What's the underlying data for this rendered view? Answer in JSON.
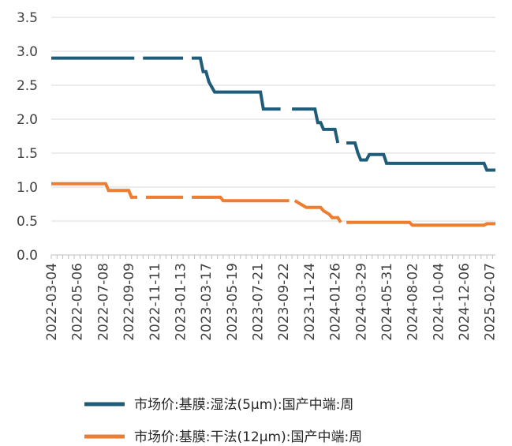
{
  "chart_data": {
    "type": "line",
    "title": "",
    "xlabel": "",
    "ylabel": "",
    "ylim": [
      0,
      3.5
    ],
    "yticks": [
      "0.0",
      "0.5",
      "1.0",
      "1.5",
      "2.0",
      "2.5",
      "3.0",
      "3.5"
    ],
    "xticks": [
      "2022-03-04",
      "2022-05-06",
      "2022-07-08",
      "2022-09-09",
      "2022-11-11",
      "2023-01-13",
      "2023-03-17",
      "2023-05-19",
      "2023-07-21",
      "2023-09-22",
      "2023-11-24",
      "2024-01-26",
      "2024-03-29",
      "2024-05-31",
      "2024-08-02",
      "2024-10-04",
      "2024-12-06",
      "2025-02-07"
    ],
    "grid": true,
    "legend_position": "bottom",
    "series": [
      {
        "name": "市场价:基膜:湿法(5μm):国产中端:周",
        "color": "#1f5c7a",
        "points": [
          [
            "2022-03-04",
            2.9
          ],
          [
            "2022-09-23",
            2.9
          ],
          [
            "2022-10-07",
            null
          ],
          [
            "2022-10-14",
            2.9
          ],
          [
            "2023-01-20",
            2.9
          ],
          [
            "2023-02-03",
            null
          ],
          [
            "2023-02-10",
            2.9
          ],
          [
            "2023-03-03",
            2.9
          ],
          [
            "2023-03-10",
            2.7
          ],
          [
            "2023-03-17",
            2.7
          ],
          [
            "2023-03-24",
            2.55
          ],
          [
            "2023-04-07",
            2.4
          ],
          [
            "2023-07-28",
            2.4
          ],
          [
            "2023-08-04",
            2.15
          ],
          [
            "2023-09-15",
            2.15
          ],
          [
            "2023-09-29",
            null
          ],
          [
            "2023-10-13",
            2.15
          ],
          [
            "2023-12-08",
            2.15
          ],
          [
            "2023-12-15",
            1.95
          ],
          [
            "2023-12-22",
            1.95
          ],
          [
            "2023-12-29",
            1.85
          ],
          [
            "2024-01-26",
            1.85
          ],
          [
            "2024-02-02",
            1.65
          ],
          [
            "2024-02-09",
            null
          ],
          [
            "2024-02-23",
            1.65
          ],
          [
            "2024-03-15",
            1.65
          ],
          [
            "2024-03-22",
            1.5
          ],
          [
            "2024-03-29",
            1.4
          ],
          [
            "2024-04-12",
            1.4
          ],
          [
            "2024-04-19",
            1.48
          ],
          [
            "2024-05-24",
            1.48
          ],
          [
            "2024-05-31",
            1.35
          ],
          [
            "2025-01-24",
            1.35
          ],
          [
            "2025-01-31",
            1.25
          ],
          [
            "2025-02-21",
            1.25
          ]
        ]
      },
      {
        "name": "市场价:基膜:干法(12μm):国产中端:周",
        "color": "#ed7d31",
        "points": [
          [
            "2022-03-04",
            1.05
          ],
          [
            "2022-07-15",
            1.05
          ],
          [
            "2022-07-22",
            0.95
          ],
          [
            "2022-09-09",
            0.95
          ],
          [
            "2022-09-16",
            0.85
          ],
          [
            "2022-09-30",
            0.85
          ],
          [
            "2022-10-07",
            null
          ],
          [
            "2022-10-21",
            0.85
          ],
          [
            "2023-01-20",
            0.85
          ],
          [
            "2023-02-03",
            null
          ],
          [
            "2023-02-10",
            0.85
          ],
          [
            "2023-04-21",
            0.85
          ],
          [
            "2023-04-28",
            0.8
          ],
          [
            "2023-10-06",
            0.8
          ],
          [
            "2023-10-13",
            null
          ],
          [
            "2023-10-20",
            0.8
          ],
          [
            "2023-11-03",
            0.75
          ],
          [
            "2023-11-17",
            0.7
          ],
          [
            "2023-12-22",
            0.7
          ],
          [
            "2023-12-29",
            0.65
          ],
          [
            "2024-01-12",
            0.6
          ],
          [
            "2024-01-19",
            0.55
          ],
          [
            "2024-02-02",
            0.55
          ],
          [
            "2024-02-09",
            0.48
          ],
          [
            "2024-02-16",
            null
          ],
          [
            "2024-02-23",
            0.48
          ],
          [
            "2024-07-26",
            0.48
          ],
          [
            "2024-08-02",
            0.44
          ],
          [
            "2025-01-24",
            0.44
          ],
          [
            "2025-01-31",
            0.46
          ],
          [
            "2025-02-21",
            0.46
          ]
        ]
      }
    ]
  }
}
